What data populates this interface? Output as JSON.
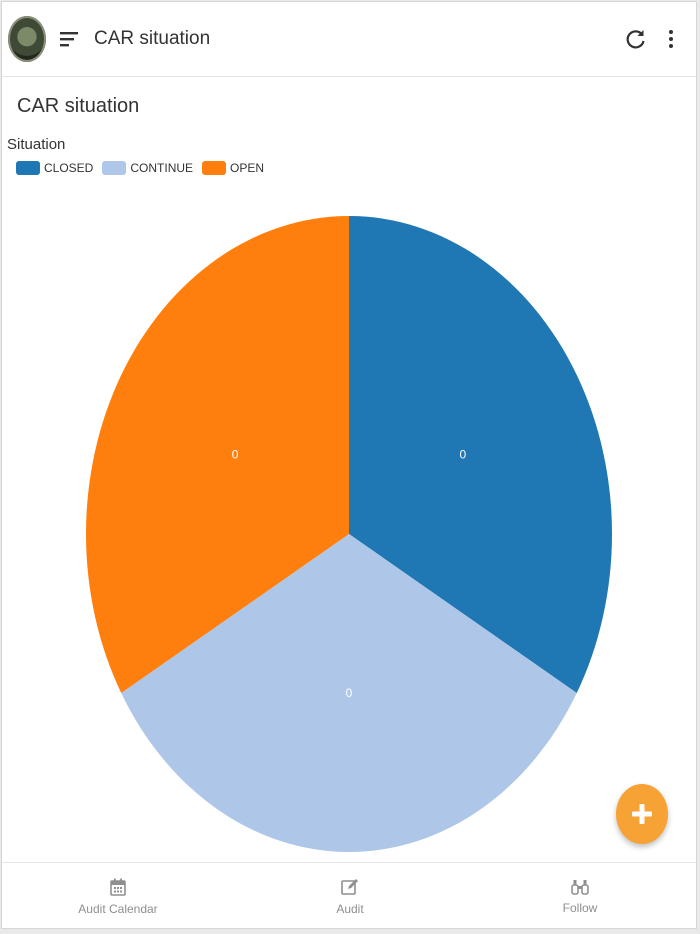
{
  "header": {
    "title": "CAR situation",
    "icons": [
      "menu-icon",
      "refresh-icon",
      "more-vertical-icon"
    ]
  },
  "page": {
    "section_title": "CAR situation"
  },
  "chart_data": {
    "type": "pie",
    "title": "",
    "legend_title": "Situation",
    "legend_position": "top-left",
    "categories": [
      "CLOSED",
      "CONTINUE",
      "OPEN"
    ],
    "values": [
      0,
      0,
      0
    ],
    "data_labels": [
      "0",
      "0",
      "0"
    ],
    "colors": [
      "#1f77b4",
      "#aec7e8",
      "#ff7f0e"
    ]
  },
  "fab": {
    "icon": "plus-icon",
    "color": "#f7a234"
  },
  "bottom_nav": {
    "items": [
      {
        "label": "Audit Calendar",
        "icon": "calendar-icon"
      },
      {
        "label": "Audit",
        "icon": "edit-icon"
      },
      {
        "label": "Follow",
        "icon": "binoculars-icon"
      }
    ]
  }
}
